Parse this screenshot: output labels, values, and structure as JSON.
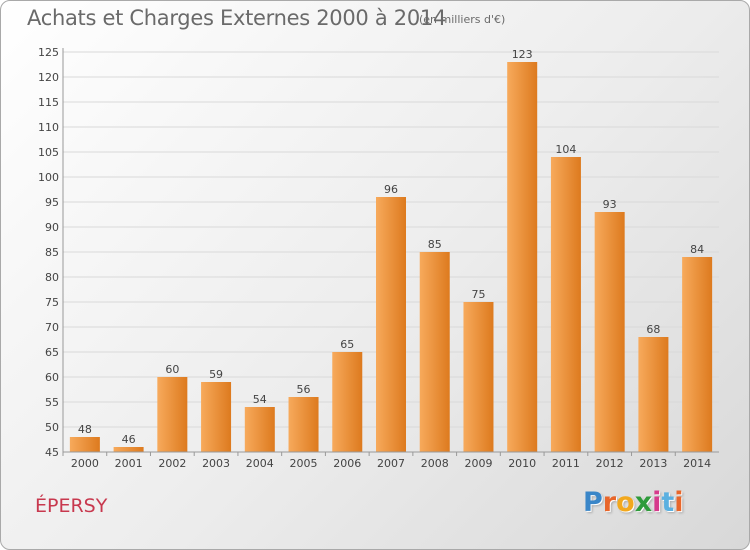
{
  "header": {
    "title": "Achats et Charges Externes 2000 à 2014",
    "unit": "(en milliers d'€)"
  },
  "footer": {
    "town": "ÉPERSY",
    "logo_letters": [
      "P",
      "r",
      "o",
      "x",
      "i",
      "t",
      "i"
    ],
    "logo_colors": [
      "#3a86c8",
      "#e8662a",
      "#f2a81d",
      "#2e9b3b",
      "#d63a8c",
      "#5bb0e0",
      "#e8662a"
    ]
  },
  "colors": {
    "bar_light": "#f7aa5c",
    "bar_dark": "#dd7a1e",
    "grid": "#d9d9d9",
    "axis_text": "#444444"
  },
  "chart_data": {
    "type": "bar",
    "title": "Achats et Charges Externes 2000 à 2014",
    "xlabel": "",
    "ylabel": "",
    "categories": [
      "2000",
      "2001",
      "2002",
      "2003",
      "2004",
      "2005",
      "2006",
      "2007",
      "2008",
      "2009",
      "2010",
      "2011",
      "2012",
      "2013",
      "2014"
    ],
    "values": [
      48,
      46,
      60,
      59,
      54,
      56,
      65,
      96,
      85,
      75,
      123,
      104,
      93,
      68,
      84
    ],
    "ylim": [
      45,
      125
    ],
    "yticks": [
      45,
      50,
      55,
      60,
      65,
      70,
      75,
      80,
      85,
      90,
      95,
      100,
      105,
      110,
      115,
      120,
      125
    ],
    "grid": true,
    "legend": "none"
  }
}
